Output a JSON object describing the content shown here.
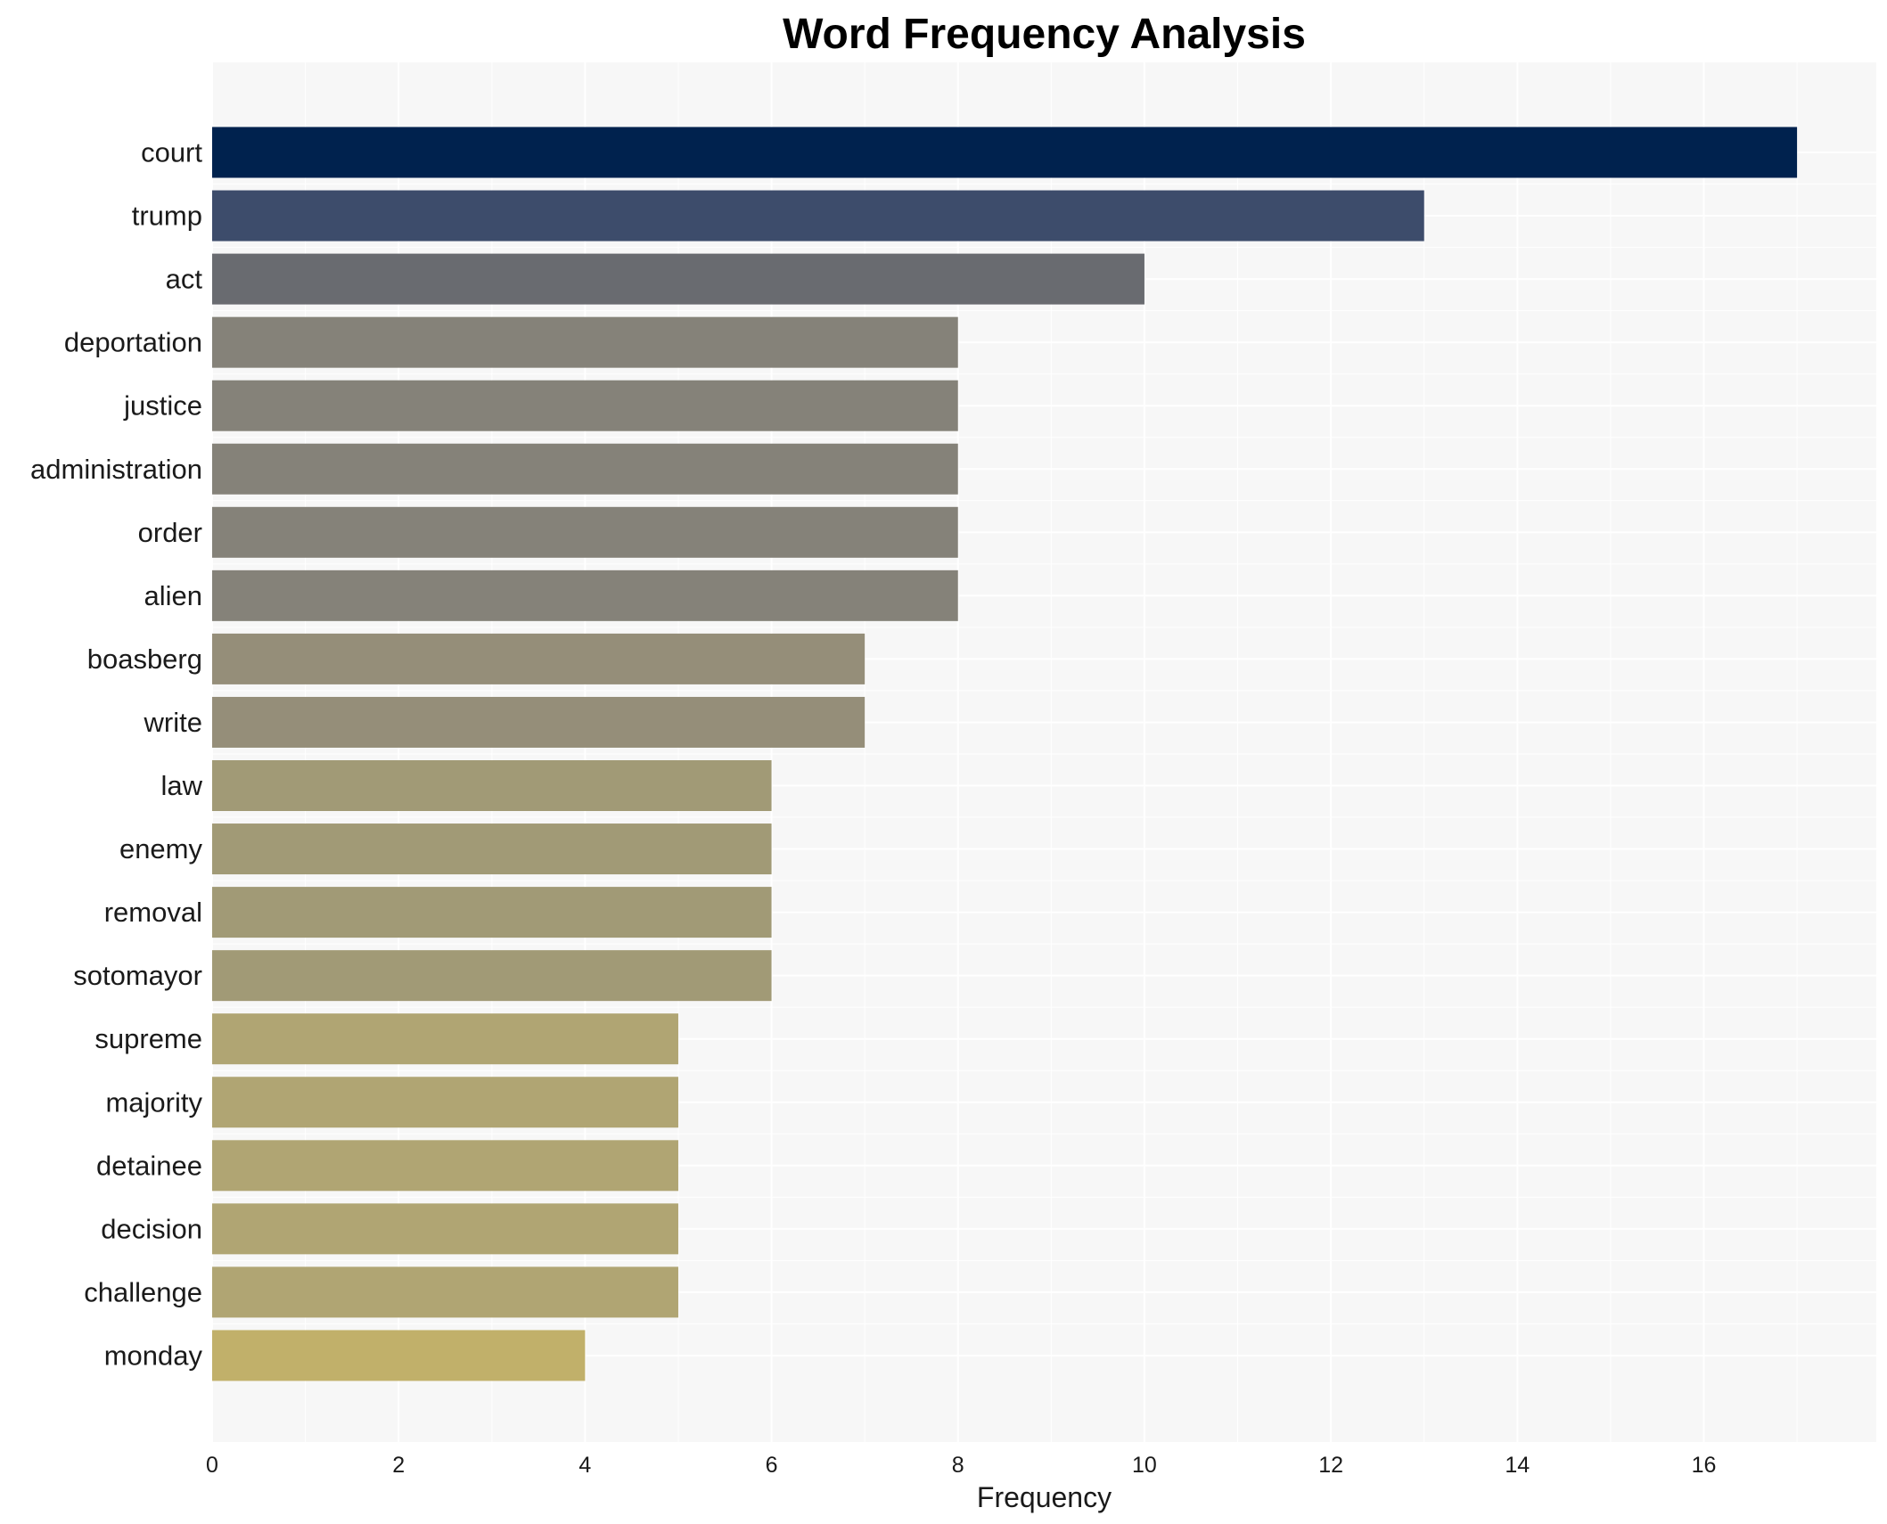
{
  "chart_data": {
    "type": "bar",
    "orientation": "horizontal",
    "title": "Word Frequency Analysis",
    "xlabel": "Frequency",
    "ylabel": "",
    "xlim": [
      0,
      17.85
    ],
    "xticks": [
      0,
      2,
      4,
      6,
      8,
      10,
      12,
      14,
      16
    ],
    "grid": true,
    "legend": "none",
    "categories": [
      "court",
      "trump",
      "act",
      "deportation",
      "justice",
      "administration",
      "order",
      "alien",
      "boasberg",
      "write",
      "law",
      "enemy",
      "removal",
      "sotomayor",
      "supreme",
      "majority",
      "detainee",
      "decision",
      "challenge",
      "monday"
    ],
    "values": [
      17,
      13,
      10,
      8,
      8,
      8,
      8,
      8,
      7,
      7,
      6,
      6,
      6,
      6,
      5,
      5,
      5,
      5,
      5,
      4
    ],
    "colors": [
      "#00224e",
      "#3d4c6b",
      "#696b70",
      "#858279",
      "#858279",
      "#858279",
      "#858279",
      "#858279",
      "#958e79",
      "#958e79",
      "#a19a76",
      "#a19a76",
      "#a19a76",
      "#a19a76",
      "#b0a573",
      "#b0a573",
      "#b0a573",
      "#b0a573",
      "#b0a573",
      "#c1b06a"
    ],
    "plot_background": "#f7f7f7",
    "grid_color": "#ffffff"
  }
}
